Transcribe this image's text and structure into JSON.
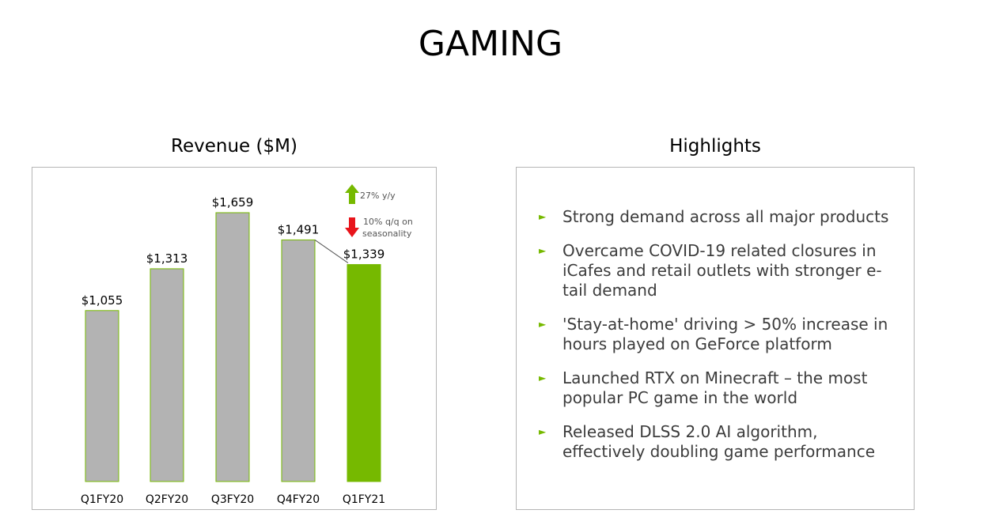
{
  "page": {
    "title": "GAMING"
  },
  "chart_data": {
    "type": "bar",
    "title": "Revenue ($M)",
    "categories": [
      "Q1FY20",
      "Q2FY20",
      "Q3FY20",
      "Q4FY20",
      "Q1FY21"
    ],
    "values": [
      1055,
      1313,
      1659,
      1491,
      1339
    ],
    "value_labels": [
      "$1,055",
      "$1,313",
      "$1,659",
      "$1,491",
      "$1,339"
    ],
    "highlight_index": 4,
    "colors": {
      "default": "#b3b3b3",
      "highlight": "#76b900",
      "up": "#76b900",
      "down": "#e8141b"
    },
    "ylim": [
      0,
      1750
    ],
    "annotations": [
      {
        "direction": "up",
        "text": "27% y/y"
      },
      {
        "direction": "down",
        "text": "10% q/q on seasonality"
      }
    ]
  },
  "highlights": {
    "heading": "Highlights",
    "items": [
      "Strong demand across all major products",
      "Overcame COVID-19 related closures in iCafes and retail outlets with stronger e-tail demand",
      "'Stay-at-home' driving > 50% increase in hours played on GeForce platform",
      "Launched RTX on Minecraft – the most popular PC game in the world",
      "Released DLSS 2.0 AI algorithm, effectively doubling game performance"
    ]
  }
}
